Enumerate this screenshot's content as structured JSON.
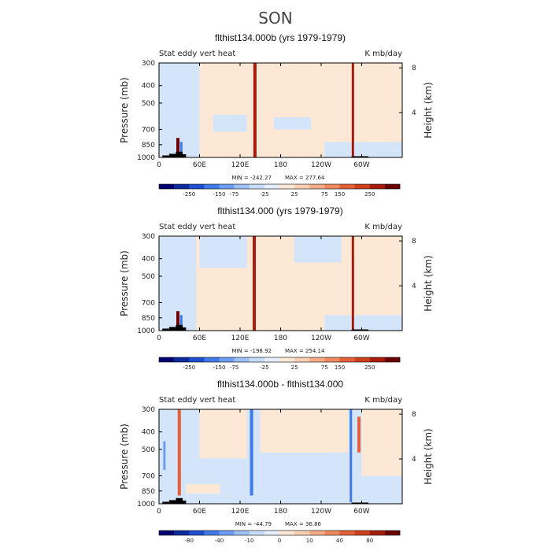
{
  "page_title": "SON",
  "colors": {
    "scale": [
      "#000070",
      "#0b2a9c",
      "#1f4fd0",
      "#3f7ae8",
      "#6c9df2",
      "#9cc0f5",
      "#c7dcf9",
      "#e4eefc",
      "#fde8d6",
      "#fbcfb2",
      "#f5ab86",
      "#ee8a5e",
      "#e2603a",
      "#cf3f1d",
      "#a71d0c",
      "#6b0000"
    ],
    "base_pos": "#fde8d6",
    "base_neg": "#d4e5fa",
    "terrain": "#000000"
  },
  "chart_data": [
    {
      "type": "heatmap",
      "title": "flthist134.000b (yrs 1979-1979)",
      "left_label": "Stat eddy vert heat",
      "right_label": "K mb/day",
      "ylabel": "Pressure (mb)",
      "y2label": "Height (km)",
      "x_ticks": [
        "0",
        "60E",
        "120E",
        "180",
        "120W",
        "60W"
      ],
      "x_tick_lon": [
        0,
        60,
        120,
        180,
        240,
        300
      ],
      "xlim": [
        0,
        360
      ],
      "y_ticks": [
        "300",
        "400",
        "500",
        "700",
        "850",
        "1000"
      ],
      "y_tick_p": [
        300,
        400,
        500,
        700,
        850,
        1000
      ],
      "ylim": [
        300,
        1000
      ],
      "y2_ticks": [
        "8",
        "4"
      ],
      "y2_tick_km": [
        8,
        4
      ],
      "min_label": "MIN = -242.27",
      "max_label": "MAX = 277.64",
      "colorbar_labels": [
        "-250",
        "-150",
        "-75",
        "-25",
        "25",
        "75",
        "150",
        "250"
      ],
      "base": "pos",
      "features": [
        {
          "lon": 142,
          "width": 4,
          "bin": 14,
          "p_top": 300,
          "p_bot": 1000
        },
        {
          "lon": 287,
          "width": 3,
          "bin": 14,
          "p_top": 300,
          "p_bot": 1000
        },
        {
          "lon": 28,
          "width": 4,
          "bin": 15,
          "p_top": 780,
          "p_bot": 1000
        },
        {
          "lon": 33,
          "width": 3,
          "bin": 3,
          "p_top": 820,
          "p_bot": 950
        }
      ],
      "neg_regions": [
        {
          "lon0": 0,
          "lon1": 60,
          "p0": 300,
          "p1": 1000
        },
        {
          "lon0": 80,
          "lon1": 130,
          "p0": 580,
          "p1": 720
        },
        {
          "lon0": 170,
          "lon1": 225,
          "p0": 600,
          "p1": 700
        },
        {
          "lon0": 245,
          "lon1": 360,
          "p0": 820,
          "p1": 1000
        }
      ],
      "terrain_steps": [
        {
          "lon0": 5,
          "lon1": 15,
          "p": 975
        },
        {
          "lon0": 15,
          "lon1": 25,
          "p": 955
        },
        {
          "lon0": 25,
          "lon1": 35,
          "p": 930
        },
        {
          "lon0": 35,
          "lon1": 40,
          "p": 960
        },
        {
          "lon0": 285,
          "lon1": 310,
          "p": 985
        }
      ]
    },
    {
      "type": "heatmap",
      "title": "flthist134.000 (yrs 1979-1979)",
      "left_label": "Stat eddy vert heat",
      "right_label": "K mb/day",
      "ylabel": "Pressure (mb)",
      "y2label": "Height (km)",
      "x_ticks": [
        "0",
        "60E",
        "120E",
        "180",
        "120W",
        "60W"
      ],
      "x_tick_lon": [
        0,
        60,
        120,
        180,
        240,
        300
      ],
      "xlim": [
        0,
        360
      ],
      "y_ticks": [
        "300",
        "400",
        "500",
        "700",
        "850",
        "1000"
      ],
      "y_tick_p": [
        300,
        400,
        500,
        700,
        850,
        1000
      ],
      "ylim": [
        300,
        1000
      ],
      "y2_ticks": [
        "8",
        "4"
      ],
      "y2_tick_km": [
        8,
        4
      ],
      "min_label": "MIN = -198.92",
      "max_label": "MAX = 254.14",
      "colorbar_labels": [
        "-250",
        "-150",
        "-75",
        "-25",
        "25",
        "75",
        "150",
        "250"
      ],
      "base": "pos",
      "features": [
        {
          "lon": 141,
          "width": 4,
          "bin": 14,
          "p_top": 300,
          "p_bot": 1000
        },
        {
          "lon": 287,
          "width": 3,
          "bin": 14,
          "p_top": 300,
          "p_bot": 1000
        },
        {
          "lon": 28,
          "width": 4,
          "bin": 15,
          "p_top": 780,
          "p_bot": 1000
        },
        {
          "lon": 33,
          "width": 3,
          "bin": 3,
          "p_top": 820,
          "p_bot": 950
        }
      ],
      "neg_regions": [
        {
          "lon0": 0,
          "lon1": 55,
          "p0": 300,
          "p1": 1000
        },
        {
          "lon0": 60,
          "lon1": 130,
          "p0": 300,
          "p1": 450
        },
        {
          "lon0": 200,
          "lon1": 270,
          "p0": 300,
          "p1": 420
        },
        {
          "lon0": 245,
          "lon1": 360,
          "p0": 820,
          "p1": 1000
        }
      ],
      "terrain_steps": [
        {
          "lon0": 5,
          "lon1": 15,
          "p": 975
        },
        {
          "lon0": 15,
          "lon1": 25,
          "p": 955
        },
        {
          "lon0": 25,
          "lon1": 35,
          "p": 930
        },
        {
          "lon0": 35,
          "lon1": 40,
          "p": 960
        },
        {
          "lon0": 285,
          "lon1": 310,
          "p": 985
        }
      ]
    },
    {
      "type": "heatmap",
      "title": "flthist134.000b - flthist134.000",
      "left_label": "Stat eddy vert heat",
      "right_label": "K mb/day",
      "ylabel": "Pressure (mb)",
      "y2label": "Height (km)",
      "x_ticks": [
        "0",
        "60E",
        "120E",
        "180",
        "120W",
        "60W"
      ],
      "x_tick_lon": [
        0,
        60,
        120,
        180,
        240,
        300
      ],
      "xlim": [
        0,
        360
      ],
      "y_ticks": [
        "300",
        "400",
        "500",
        "700",
        "850",
        "1000"
      ],
      "y_tick_p": [
        300,
        400,
        500,
        700,
        850,
        1000
      ],
      "ylim": [
        300,
        1000
      ],
      "y2_ticks": [
        "8",
        "4"
      ],
      "y2_tick_km": [
        8,
        4
      ],
      "min_label": "MIN = -44.79",
      "max_label": "MAX =  36.86",
      "colorbar_labels": [
        "-80",
        "-40",
        "-10",
        "0",
        "10",
        "40",
        "80"
      ],
      "base": "neg",
      "features": [
        {
          "lon": 137,
          "width": 4,
          "bin": 3,
          "p_top": 300,
          "p_bot": 900
        },
        {
          "lon": 284,
          "width": 3,
          "bin": 3,
          "p_top": 300,
          "p_bot": 980
        },
        {
          "lon": 30,
          "width": 4,
          "bin": 12,
          "p_top": 300,
          "p_bot": 900
        },
        {
          "lon": 296,
          "width": 4,
          "bin": 12,
          "p_top": 330,
          "p_bot": 520
        },
        {
          "lon": 8,
          "width": 3,
          "bin": 4,
          "p_top": 450,
          "p_bot": 650
        }
      ],
      "pos_regions": [
        {
          "lon0": 60,
          "lon1": 130,
          "p0": 300,
          "p1": 560
        },
        {
          "lon0": 150,
          "lon1": 280,
          "p0": 300,
          "p1": 520
        },
        {
          "lon0": 300,
          "lon1": 360,
          "p0": 300,
          "p1": 700
        },
        {
          "lon0": 40,
          "lon1": 90,
          "p0": 780,
          "p1": 880
        }
      ],
      "terrain_steps": [
        {
          "lon0": 5,
          "lon1": 15,
          "p": 975
        },
        {
          "lon0": 15,
          "lon1": 25,
          "p": 955
        },
        {
          "lon0": 25,
          "lon1": 35,
          "p": 930
        },
        {
          "lon0": 35,
          "lon1": 40,
          "p": 960
        },
        {
          "lon0": 285,
          "lon1": 310,
          "p": 985
        }
      ]
    }
  ]
}
